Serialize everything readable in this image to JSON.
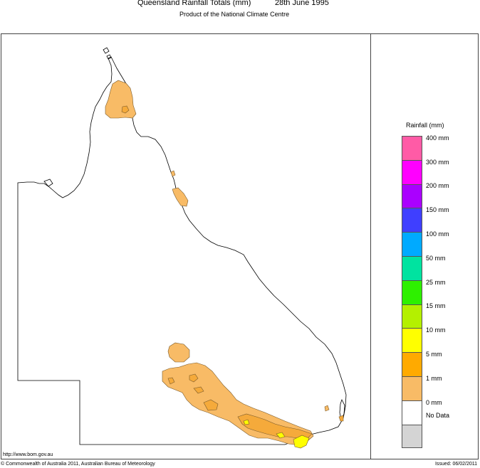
{
  "header": {
    "title": "Queensland Rainfall Totals (mm)",
    "date": "28th June 1995",
    "subtitle": "Product of the National Climate Centre"
  },
  "legend": {
    "title": "Rainfall (mm)",
    "items": [
      {
        "label": "400 mm",
        "color": "#ff5ba6"
      },
      {
        "label": "300 mm",
        "color": "#ff00ff"
      },
      {
        "label": "200 mm",
        "color": "#aa00ff"
      },
      {
        "label": "150 mm",
        "color": "#3f3fff"
      },
      {
        "label": "100 mm",
        "color": "#00aaff"
      },
      {
        "label": "50 mm",
        "color": "#00e3a0"
      },
      {
        "label": "25 mm",
        "color": "#2ef000"
      },
      {
        "label": "15 mm",
        "color": "#b4f000"
      },
      {
        "label": "10 mm",
        "color": "#ffff00"
      },
      {
        "label": "5 mm",
        "color": "#ffaa00"
      },
      {
        "label": "1 mm",
        "color": "#f8bb66"
      },
      {
        "label": "0 mm",
        "color": "#ffffff"
      },
      {
        "label": "No Data",
        "color": "#d4d4d4"
      }
    ]
  },
  "footer": {
    "url": "http://www.bom.gov.au",
    "copyright": "© Commonwealth of Australia 2011, Australian Bureau of Meteorology",
    "issued": "Issued: 06/02/2011"
  }
}
